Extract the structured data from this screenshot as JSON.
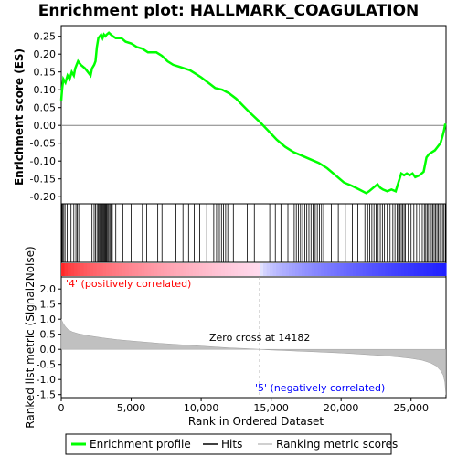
{
  "chart_data": [
    {
      "type": "line",
      "title": "Enrichment plot: HALLMARK_COAGULATION",
      "ylabel": "Enrichment score (ES)",
      "xlim": [
        0,
        27500
      ],
      "ylim": [
        -0.22,
        0.28
      ],
      "yticks": [
        -0.2,
        -0.15,
        -0.1,
        -0.05,
        0.0,
        0.05,
        0.1,
        0.15,
        0.2,
        0.25
      ],
      "ytick_labels": [
        "-0.20",
        "-0.15",
        "-0.10",
        "-0.05",
        "0.00",
        "0.05",
        "0.10",
        "0.15",
        "0.20",
        "0.25"
      ],
      "series": [
        {
          "name": "Enrichment profile",
          "color": "#00ff00",
          "x": [
            0,
            60,
            150,
            300,
            450,
            600,
            750,
            900,
            1000,
            1100,
            1200,
            1400,
            1700,
            1900,
            2100,
            2200,
            2350,
            2450,
            2550,
            2650,
            2750,
            2850,
            2950,
            3050,
            3150,
            3250,
            3400,
            3550,
            3700,
            3900,
            4100,
            4300,
            4600,
            5000,
            5400,
            5800,
            6200,
            6500,
            6800,
            7200,
            7600,
            8000,
            8400,
            8800,
            9200,
            9600,
            10000,
            10500,
            11000,
            11500,
            12000,
            12500,
            13000,
            13500,
            14182,
            14800,
            15400,
            16000,
            16600,
            17200,
            17800,
            18400,
            19000,
            19600,
            20200,
            20800,
            21300,
            21800,
            22000,
            22300,
            22600,
            22800,
            23000,
            23300,
            23600,
            23900,
            24100,
            24300,
            24500,
            24700,
            24900,
            25100,
            25300,
            25600,
            25900,
            26100,
            26300,
            26500,
            26700,
            26900,
            27100,
            27250,
            27350,
            27450
          ],
          "y": [
            0.07,
            0.1,
            0.13,
            0.12,
            0.14,
            0.13,
            0.15,
            0.14,
            0.16,
            0.17,
            0.18,
            0.17,
            0.16,
            0.15,
            0.14,
            0.16,
            0.17,
            0.18,
            0.22,
            0.245,
            0.25,
            0.255,
            0.245,
            0.255,
            0.25,
            0.255,
            0.26,
            0.255,
            0.25,
            0.245,
            0.245,
            0.245,
            0.235,
            0.23,
            0.22,
            0.215,
            0.205,
            0.205,
            0.205,
            0.195,
            0.18,
            0.17,
            0.165,
            0.16,
            0.155,
            0.145,
            0.135,
            0.12,
            0.105,
            0.1,
            0.09,
            0.075,
            0.055,
            0.035,
            0.01,
            -0.015,
            -0.04,
            -0.06,
            -0.075,
            -0.085,
            -0.095,
            -0.105,
            -0.12,
            -0.14,
            -0.16,
            -0.17,
            -0.18,
            -0.19,
            -0.185,
            -0.175,
            -0.165,
            -0.175,
            -0.18,
            -0.185,
            -0.18,
            -0.185,
            -0.16,
            -0.135,
            -0.14,
            -0.135,
            -0.14,
            -0.135,
            -0.145,
            -0.14,
            -0.13,
            -0.09,
            -0.08,
            -0.075,
            -0.07,
            -0.06,
            -0.05,
            -0.03,
            -0.015,
            0.005
          ]
        }
      ]
    },
    {
      "type": "scatter",
      "legend_label": "Hits",
      "hit_positions": [
        40,
        90,
        180,
        270,
        420,
        560,
        700,
        900,
        1050,
        1150,
        1250,
        2200,
        2350,
        2450,
        2560,
        2650,
        2700,
        2780,
        2850,
        2900,
        2960,
        3020,
        3080,
        3140,
        3200,
        3260,
        3330,
        3400,
        3480,
        3560,
        3650,
        3900,
        4400,
        5000,
        5800,
        6100,
        6900,
        7200,
        8200,
        8700,
        9100,
        9500,
        9900,
        10400,
        10900,
        11100,
        11300,
        11450,
        11600,
        11750,
        11900,
        12300,
        13300,
        13800,
        14900,
        15300,
        15700,
        16200,
        16500,
        16650,
        16800,
        16950,
        17100,
        17250,
        17400,
        17550,
        17700,
        17850,
        18000,
        18150,
        18300,
        18450,
        18600,
        18750,
        19300,
        19800,
        20300,
        20800,
        21200,
        21700,
        21900,
        22050,
        22200,
        22350,
        22500,
        22650,
        22800,
        22950,
        23100,
        23300,
        23500,
        23700,
        23850,
        24000,
        24100,
        24200,
        24300,
        24400,
        24500,
        24600,
        24800,
        25000,
        25200,
        25400,
        25600,
        25800,
        25950,
        26050,
        26150,
        26250,
        26350,
        26450,
        26550,
        26650,
        26750,
        26850,
        26950,
        27050,
        27150,
        27250,
        27350,
        27450
      ]
    },
    {
      "type": "area",
      "xlabel": "Rank in Ordered Dataset",
      "ylabel": "Ranked list metric (Signal2Noise)",
      "xlim": [
        0,
        27500
      ],
      "ylim": [
        -1.6,
        2.4
      ],
      "xticks": [
        0,
        5000,
        10000,
        15000,
        20000,
        25000
      ],
      "xtick_labels": [
        "0",
        "5,000",
        "10,000",
        "15,000",
        "20,000",
        "25,000"
      ],
      "yticks": [
        -1.5,
        -1.0,
        -0.5,
        0.0,
        0.5,
        1.0,
        1.5,
        2.0
      ],
      "ytick_labels": [
        "-1.5",
        "-1.0",
        "-0.5",
        "0.0",
        "0.5",
        "1.0",
        "1.5",
        "2.0"
      ],
      "series": [
        {
          "name": "Ranking metric scores",
          "x": [
            0,
            50,
            150,
            300,
            500,
            800,
            1200,
            2000,
            3000,
            4000,
            5000,
            6000,
            7000,
            8000,
            9000,
            10000,
            11000,
            12000,
            13000,
            14182,
            15000,
            16000,
            17000,
            18000,
            19000,
            20000,
            21000,
            22000,
            23000,
            24000,
            25000,
            25800,
            26400,
            26800,
            27100,
            27300,
            27420,
            27480
          ],
          "y": [
            1.0,
            0.95,
            0.85,
            0.75,
            0.65,
            0.58,
            0.52,
            0.45,
            0.38,
            0.32,
            0.28,
            0.24,
            0.2,
            0.17,
            0.14,
            0.11,
            0.08,
            0.05,
            0.03,
            0.0,
            -0.02,
            -0.04,
            -0.06,
            -0.08,
            -0.1,
            -0.12,
            -0.15,
            -0.18,
            -0.21,
            -0.25,
            -0.3,
            -0.36,
            -0.45,
            -0.55,
            -0.7,
            -0.85,
            -1.1,
            -1.5
          ]
        }
      ],
      "annotations": [
        {
          "text": "'4' (positively correlated)",
          "color": "#ff0000"
        },
        {
          "text": "Zero cross at 14182",
          "color": "#000000"
        },
        {
          "text": "'5' (negatively correlated)",
          "color": "#0000ff"
        }
      ],
      "zero_cross": 14182
    }
  ],
  "legend": {
    "items": [
      {
        "label": "Enrichment profile",
        "color": "#00ff00"
      },
      {
        "label": "Hits",
        "color": "#000000"
      },
      {
        "label": "Ranking metric scores",
        "color": "#c0c0c0"
      }
    ]
  }
}
